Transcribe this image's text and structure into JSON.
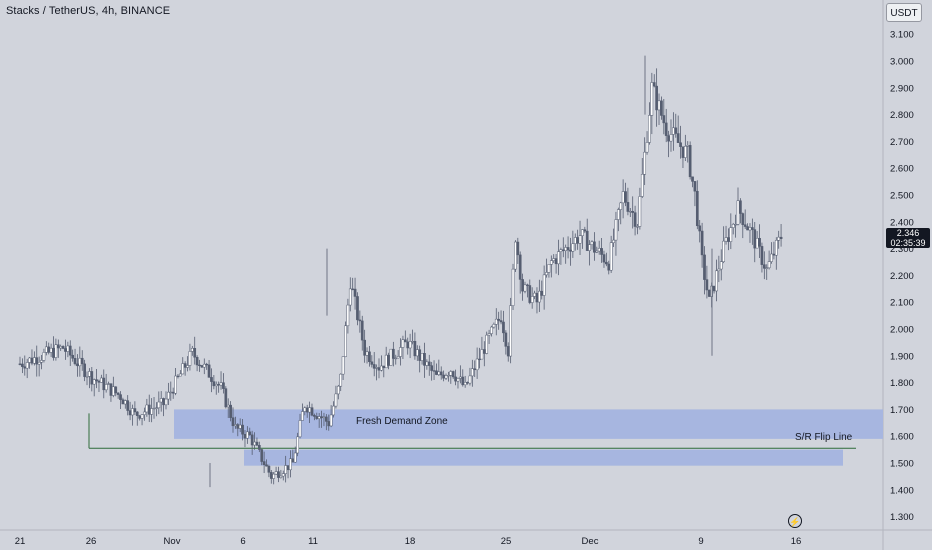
{
  "title": "Stacks / TetherUS, 4h, BINANCE",
  "currency": "USDT",
  "last_price": "2.346",
  "countdown": "02:35:39",
  "zones": {
    "demand_label": "Fresh Demand Zone",
    "flip_label": "S/R Flip Line"
  },
  "colors": {
    "background": "#d1d4dc",
    "zone_fill": "#a7b6e0",
    "candle": "#555d70",
    "flip_line": "#2e6b3a"
  },
  "icons": {
    "replay": "lightning-icon"
  },
  "chart_data": {
    "type": "candlestick",
    "symbol": "Stacks / TetherUS",
    "interval": "4h",
    "exchange": "BINANCE",
    "x_ticks": [
      "21",
      "26",
      "Nov",
      "6",
      "11",
      "18",
      "25",
      "Dec",
      "9",
      "16"
    ],
    "y_ticks": [
      "3.100",
      "3.000",
      "2.900",
      "2.800",
      "2.700",
      "2.600",
      "2.500",
      "2.400",
      "2.300",
      "2.200",
      "2.100",
      "2.000",
      "1.900",
      "1.800",
      "1.700",
      "1.600",
      "1.500",
      "1.400",
      "1.300"
    ],
    "ylim": [
      1.25,
      3.15
    ],
    "price_path": [
      {
        "d": 0,
        "p": 1.87
      },
      {
        "d": 3,
        "p": 1.93
      },
      {
        "d": 5,
        "p": 1.82
      },
      {
        "d": 7,
        "p": 1.75
      },
      {
        "d": 8,
        "p": 1.68
      },
      {
        "d": 10,
        "p": 1.72
      },
      {
        "d": 12,
        "p": 1.91
      },
      {
        "d": 14,
        "p": 1.78
      },
      {
        "d": 15,
        "p": 1.63
      },
      {
        "d": 16,
        "p": 1.6
      },
      {
        "d": 17.5,
        "p": 1.45
      },
      {
        "d": 19,
        "p": 1.5
      },
      {
        "d": 19.8,
        "p": 1.72
      },
      {
        "d": 21.5,
        "p": 1.65
      },
      {
        "d": 22.3,
        "p": 1.8
      },
      {
        "d": 23,
        "p": 2.18
      },
      {
        "d": 24,
        "p": 1.92
      },
      {
        "d": 25,
        "p": 1.86
      },
      {
        "d": 27,
        "p": 1.95
      },
      {
        "d": 29,
        "p": 1.82
      },
      {
        "d": 30,
        "p": 1.85
      },
      {
        "d": 31,
        "p": 1.78
      },
      {
        "d": 32.5,
        "p": 1.95
      },
      {
        "d": 33.5,
        "p": 2.05
      },
      {
        "d": 34,
        "p": 1.92
      },
      {
        "d": 34.5,
        "p": 2.35
      },
      {
        "d": 35,
        "p": 2.15
      },
      {
        "d": 36,
        "p": 2.1
      },
      {
        "d": 37,
        "p": 2.25
      },
      {
        "d": 39,
        "p": 2.35
      },
      {
        "d": 41,
        "p": 2.25
      },
      {
        "d": 42,
        "p": 2.5
      },
      {
        "d": 43,
        "p": 2.4
      },
      {
        "d": 44,
        "p": 2.9
      },
      {
        "d": 45,
        "p": 2.75
      },
      {
        "d": 46.5,
        "p": 2.65
      },
      {
        "d": 47,
        "p": 2.5
      },
      {
        "d": 47.5,
        "p": 2.25
      },
      {
        "d": 48,
        "p": 2.1
      },
      {
        "d": 49,
        "p": 2.3
      },
      {
        "d": 50,
        "p": 2.45
      },
      {
        "d": 51,
        "p": 2.35
      },
      {
        "d": 52,
        "p": 2.22
      },
      {
        "d": 53,
        "p": 2.346
      }
    ],
    "demand_zone": {
      "low": 1.59,
      "high": 1.7
    },
    "flip_zone": {
      "low": 1.49,
      "high": 1.55
    },
    "flip_line": 1.555,
    "grid": false,
    "last": 2.346
  }
}
